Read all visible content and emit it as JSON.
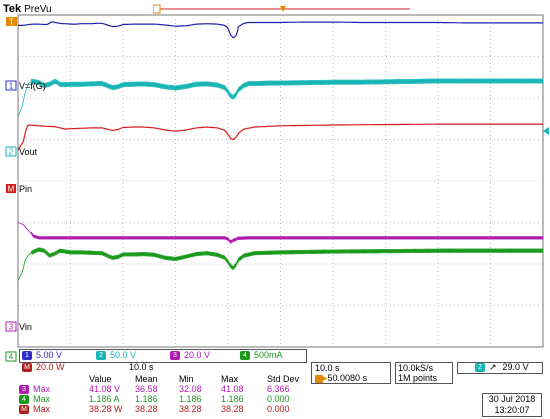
{
  "header": {
    "brand": "Tek",
    "mode": "PreVu"
  },
  "chart_data": {
    "type": "line",
    "title": "",
    "xlabel": "",
    "ylabel": "",
    "grid": true,
    "channel_labels": [
      "V=f(G)",
      "Vout",
      "Pin",
      "Vin"
    ],
    "series": [
      {
        "channel": "1",
        "color": "#1f1fb0",
        "x": [
          0,
          0.1,
          0.2,
          0.3,
          0.4,
          0.5,
          0.55,
          0.6,
          0.64,
          0.7,
          0.8,
          0.85,
          0.9,
          1.0,
          1.1,
          1.2,
          1.3,
          1.4,
          1.5,
          1.6,
          1.7,
          1.8,
          1.9,
          2.0,
          2.2,
          2.4,
          2.6,
          2.8,
          3.0,
          3.2,
          3.4,
          3.6,
          3.8,
          3.94,
          4.0,
          4.05,
          4.1,
          4.15,
          4.18,
          4.2,
          4.3,
          4.4,
          4.6,
          4.8,
          5.0,
          5.5,
          6.0,
          6.5,
          7.0,
          7.5,
          8.0,
          8.5,
          9.0,
          9.5,
          10.0
        ],
        "y": [
          3.75,
          3.75,
          3.77,
          3.78,
          3.78,
          3.77,
          3.77,
          3.8,
          3.84,
          3.82,
          3.8,
          3.79,
          3.79,
          3.78,
          3.78,
          3.79,
          3.79,
          3.79,
          3.8,
          3.8,
          3.76,
          3.72,
          3.73,
          3.77,
          3.78,
          3.78,
          3.78,
          3.76,
          3.73,
          3.74,
          3.78,
          3.79,
          3.78,
          3.75,
          3.68,
          3.52,
          3.45,
          3.5,
          3.6,
          3.72,
          3.8,
          3.82,
          3.82,
          3.82,
          3.82,
          3.83,
          3.83,
          3.82,
          3.82,
          3.82,
          3.82,
          3.81,
          3.81,
          3.81,
          3.81
        ]
      },
      {
        "channel": "2",
        "color": "#17b5b5",
        "ripple": 0.12,
        "x": [
          0,
          0.08,
          0.14,
          0.2,
          0.26,
          0.3,
          0.4,
          0.5,
          0.6,
          0.7,
          0.75,
          0.8,
          0.9,
          1.0,
          1.2,
          1.4,
          1.6,
          1.7,
          1.8,
          1.9,
          2.0,
          2.2,
          2.4,
          2.6,
          2.8,
          3.0,
          3.2,
          3.4,
          3.6,
          3.8,
          3.94,
          4.0,
          4.05,
          4.1,
          4.15,
          4.2,
          4.3,
          4.4,
          4.6,
          4.8,
          5.0,
          5.5,
          6.0,
          6.5,
          7.0,
          7.5,
          8.0,
          8.5,
          9.0,
          9.5,
          10.0
        ],
        "y": [
          1.55,
          1.8,
          2.15,
          2.35,
          2.4,
          2.4,
          2.37,
          2.3,
          2.33,
          2.4,
          2.38,
          2.33,
          2.32,
          2.33,
          2.33,
          2.34,
          2.35,
          2.3,
          2.25,
          2.27,
          2.32,
          2.33,
          2.34,
          2.32,
          2.27,
          2.24,
          2.28,
          2.33,
          2.34,
          2.31,
          2.25,
          2.15,
          2.05,
          2.02,
          2.08,
          2.2,
          2.3,
          2.35,
          2.35,
          2.36,
          2.36,
          2.37,
          2.38,
          2.38,
          2.39,
          2.4,
          2.41,
          2.41,
          2.41,
          2.41,
          2.41
        ]
      },
      {
        "channel": "3",
        "color": "#b01cb0",
        "ripple": 0.08,
        "x": [
          0,
          0.1,
          0.2,
          0.3,
          0.4,
          0.6,
          1.0,
          1.5,
          2.0,
          2.5,
          3.0,
          3.5,
          3.94,
          4.0,
          4.05,
          4.1,
          4.2,
          4.4,
          4.8,
          5.5,
          6.0,
          7.0,
          8.0,
          9.0,
          10.0
        ],
        "y": [
          -1.0,
          -1.05,
          -1.2,
          -1.33,
          -1.37,
          -1.37,
          -1.37,
          -1.37,
          -1.37,
          -1.37,
          -1.37,
          -1.37,
          -1.37,
          -1.4,
          -1.47,
          -1.43,
          -1.38,
          -1.37,
          -1.37,
          -1.37,
          -1.37,
          -1.37,
          -1.37,
          -1.37,
          -1.37
        ]
      },
      {
        "channel": "4",
        "color": "#1a9a1a",
        "ripple": 0.1,
        "x": [
          0,
          0.08,
          0.14,
          0.2,
          0.3,
          0.4,
          0.5,
          0.6,
          0.7,
          0.8,
          1.0,
          1.2,
          1.4,
          1.6,
          1.7,
          1.8,
          1.9,
          2.0,
          2.2,
          2.4,
          2.6,
          2.8,
          3.0,
          3.2,
          3.4,
          3.6,
          3.8,
          3.94,
          4.0,
          4.05,
          4.1,
          4.15,
          4.2,
          4.3,
          4.5,
          5.0,
          5.5,
          6.0,
          7.0,
          8.0,
          9.0,
          10.0
        ],
        "y": [
          -2.4,
          -2.2,
          -1.9,
          -1.78,
          -1.7,
          -1.65,
          -1.68,
          -1.8,
          -1.75,
          -1.68,
          -1.72,
          -1.72,
          -1.73,
          -1.74,
          -1.8,
          -1.85,
          -1.83,
          -1.77,
          -1.77,
          -1.76,
          -1.78,
          -1.85,
          -1.88,
          -1.82,
          -1.76,
          -1.74,
          -1.78,
          -1.85,
          -1.95,
          -2.05,
          -2.1,
          -2.02,
          -1.9,
          -1.8,
          -1.74,
          -1.72,
          -1.71,
          -1.7,
          -1.69,
          -1.68,
          -1.68,
          -1.68
        ]
      },
      {
        "channel": "M1",
        "color": "#d61a1a",
        "x": [
          0,
          0.1,
          0.16,
          0.2,
          0.3,
          0.5,
          0.7,
          0.8,
          0.9,
          1.0,
          1.2,
          1.4,
          1.6,
          1.7,
          1.8,
          1.9,
          2.0,
          2.2,
          2.4,
          2.6,
          2.8,
          3.0,
          3.2,
          3.4,
          3.6,
          3.8,
          3.94,
          4.0,
          4.05,
          4.1,
          4.15,
          4.2,
          4.3,
          4.5,
          5.0,
          5.5,
          6.0,
          7.0,
          8.0,
          9.0,
          10.0
        ],
        "y": [
          0.75,
          0.95,
          1.28,
          1.35,
          1.34,
          1.32,
          1.31,
          1.28,
          1.25,
          1.26,
          1.27,
          1.28,
          1.28,
          1.25,
          1.22,
          1.24,
          1.29,
          1.3,
          1.3,
          1.28,
          1.23,
          1.2,
          1.23,
          1.28,
          1.3,
          1.28,
          1.22,
          1.12,
          1.03,
          1.0,
          1.05,
          1.15,
          1.25,
          1.3,
          1.33,
          1.34,
          1.35,
          1.36,
          1.37,
          1.37,
          1.37
        ]
      }
    ]
  },
  "settings": {
    "ch1": {
      "num": "1",
      "value": "5.00 V",
      "color": "#2d2dc8"
    },
    "ch2": {
      "num": "2",
      "value": "50.0 V",
      "color": "#17b5b5"
    },
    "ch3": {
      "num": "3",
      "value": "20.0 V",
      "color": "#b01cb0"
    },
    "ch4": {
      "num": "4",
      "value": "500mA",
      "color": "#1a9a1a"
    },
    "math": {
      "num": "M",
      "value": "20.0 W",
      "time": "10.0 s",
      "color": "#b02020"
    },
    "timebase": "10.0 s",
    "trigger_delay": "50.0080 s",
    "sample_rate": "10.0kS/s",
    "record_length": "1M points",
    "trigger_ch": "2",
    "trigger_level": "29.0 V",
    "date": "30 Jul 2018",
    "time": "13:20:07"
  },
  "measurements": {
    "headers": [
      "",
      "Value",
      "Mean",
      "Min",
      "Max",
      "Std Dev"
    ],
    "rows": [
      {
        "badge": "3",
        "color": "#b01cb0",
        "cells": [
          "Max",
          "41.08 V",
          "36.58",
          "32.08",
          "41.08",
          "6.366"
        ]
      },
      {
        "badge": "4",
        "color": "#1a9a1a",
        "cells": [
          "Max",
          "1.186 A",
          "1.186",
          "1.186",
          "1.186",
          "0.000"
        ]
      },
      {
        "badge": "M",
        "color": "#b02020",
        "cells": [
          "Max",
          "38.28 W",
          "38.28",
          "38.28",
          "38.28",
          "0.000"
        ]
      }
    ]
  }
}
